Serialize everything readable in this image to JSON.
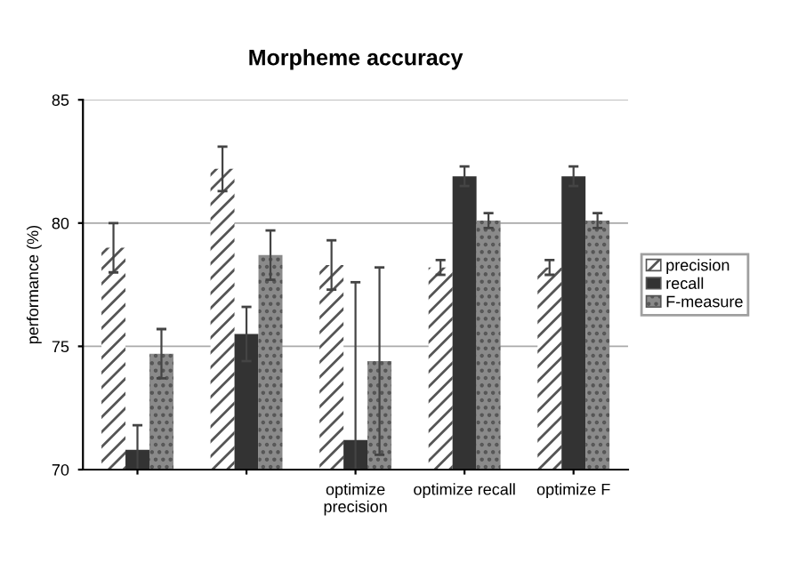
{
  "chart_data": {
    "type": "bar",
    "title": "Morpheme accuracy",
    "ylabel": "performance (%)",
    "categories": [
      null,
      null,
      "optimize\nprecision",
      "optimize recall",
      "optimize F"
    ],
    "series": [
      {
        "name": "precision",
        "color": "#ffffff",
        "values": [
          79.0,
          82.2,
          78.3,
          78.2,
          78.2
        ],
        "errors": [
          1.0,
          0.9,
          1.0,
          0.3,
          0.3
        ]
      },
      {
        "name": "recall",
        "color": "#333333",
        "values": [
          70.8,
          75.5,
          71.2,
          81.9,
          81.9
        ],
        "errors": [
          1.0,
          1.1,
          [
            70.0,
            77.6
          ],
          0.4,
          0.4
        ]
      },
      {
        "name": "F-measure",
        "color": "#8a8a8a",
        "values": [
          74.7,
          78.7,
          74.4,
          80.1,
          80.1
        ],
        "errors": [
          1.0,
          1.0,
          3.8,
          0.3,
          0.3
        ]
      }
    ],
    "ylim": [
      70,
      85
    ],
    "yticks": [
      70,
      75,
      80,
      85
    ],
    "grid": "y",
    "legend": "right"
  }
}
